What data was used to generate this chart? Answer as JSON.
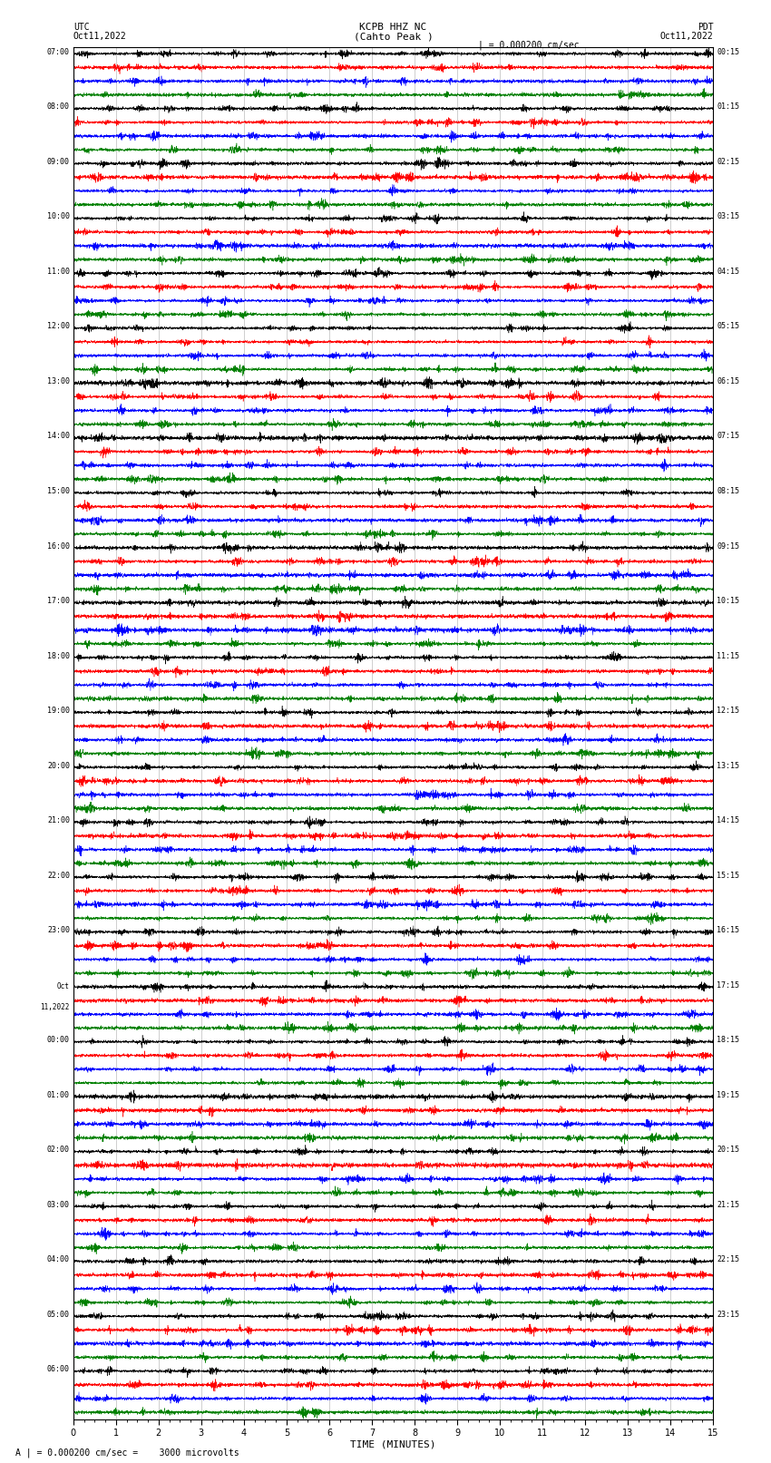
{
  "title_center": "KCPB HHZ NC\n(Cahto Peak )",
  "title_left_top": "UTC",
  "title_left_date": "Oct11,2022",
  "title_right_top": "PDT",
  "title_right_date": "Oct11,2022",
  "scale_label": "| = 0.000200 cm/sec",
  "footer_label": "A | = 0.000200 cm/sec =    3000 microvolts",
  "xlabel": "TIME (MINUTES)",
  "xticks": [
    0,
    1,
    2,
    3,
    4,
    5,
    6,
    7,
    8,
    9,
    10,
    11,
    12,
    13,
    14,
    15
  ],
  "colors": [
    "black",
    "red",
    "blue",
    "green"
  ],
  "left_times": [
    "07:00",
    "08:00",
    "09:00",
    "10:00",
    "11:00",
    "12:00",
    "13:00",
    "14:00",
    "15:00",
    "16:00",
    "17:00",
    "18:00",
    "19:00",
    "20:00",
    "21:00",
    "22:00",
    "23:00",
    "Oct\n11,2022",
    "00:00",
    "01:00",
    "02:00",
    "03:00",
    "04:00",
    "05:00",
    "06:00"
  ],
  "right_times": [
    "00:15",
    "01:15",
    "02:15",
    "03:15",
    "04:15",
    "05:15",
    "06:15",
    "07:15",
    "08:15",
    "09:15",
    "10:15",
    "11:15",
    "12:15",
    "13:15",
    "14:15",
    "15:15",
    "16:15",
    "17:15",
    "18:15",
    "19:15",
    "20:15",
    "21:15",
    "22:15",
    "23:15"
  ],
  "n_rows": 25,
  "n_traces_per_row": 4,
  "minutes": 15,
  "fig_width": 8.5,
  "fig_height": 16.13,
  "bg_color": "white",
  "trace_color_cycle": [
    "black",
    "red",
    "blue",
    "green"
  ],
  "grid_color": "#888888",
  "grid_alpha": 0.7,
  "grid_linewidth": 0.4,
  "trace_linewidth": 0.35,
  "samples_per_row": 4500,
  "noise_base": 0.12,
  "burst_scale": 0.55
}
